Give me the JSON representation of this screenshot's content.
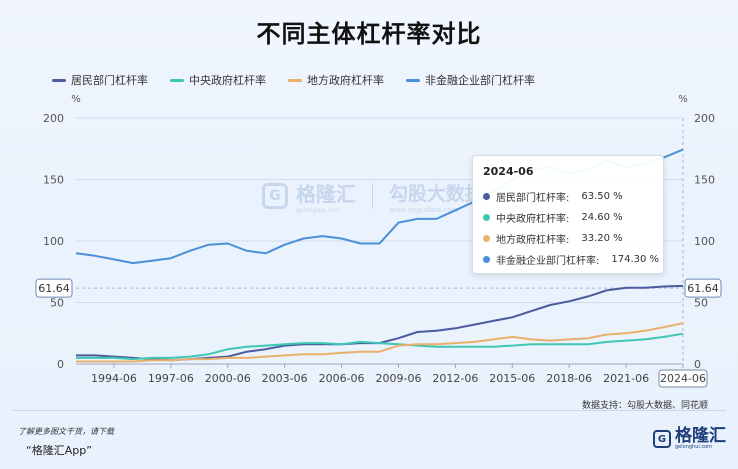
{
  "title": "不同主体杠杆率对比",
  "chart_data": {
    "type": "line",
    "ylabel_left": "%",
    "ylabel_right": "%",
    "ylim": [
      0,
      200
    ],
    "yticks": [
      0,
      50,
      100,
      150,
      200
    ],
    "xlim": [
      "1992-06",
      "2024-06"
    ],
    "xticks": [
      "1994-06",
      "1997-06",
      "2000-06",
      "2003-06",
      "2006-06",
      "2009-06",
      "2012-06",
      "2015-06",
      "2018-06",
      "2021-06",
      "2024-06"
    ],
    "crosshair_value": "61.64",
    "grid": true,
    "legend_position": "top-left",
    "series": [
      {
        "name": "居民部门杠杆率",
        "color": "#4c5a9e",
        "points": [
          [
            "1992-06",
            7
          ],
          [
            "1993-06",
            7
          ],
          [
            "1994-06",
            6
          ],
          [
            "1995-06",
            5
          ],
          [
            "1996-06",
            4
          ],
          [
            "1997-06",
            3
          ],
          [
            "1998-06",
            4
          ],
          [
            "1999-06",
            5
          ],
          [
            "2000-06",
            6
          ],
          [
            "2001-06",
            10
          ],
          [
            "2002-06",
            12
          ],
          [
            "2003-06",
            15
          ],
          [
            "2004-06",
            16
          ],
          [
            "2005-06",
            16
          ],
          [
            "2006-06",
            16
          ],
          [
            "2007-06",
            17
          ],
          [
            "2008-06",
            17
          ],
          [
            "2009-06",
            21
          ],
          [
            "2010-06",
            26
          ],
          [
            "2011-06",
            27
          ],
          [
            "2012-06",
            29
          ],
          [
            "2013-06",
            32
          ],
          [
            "2014-06",
            35
          ],
          [
            "2015-06",
            38
          ],
          [
            "2016-06",
            43
          ],
          [
            "2017-06",
            48
          ],
          [
            "2018-06",
            51
          ],
          [
            "2019-06",
            55
          ],
          [
            "2020-06",
            60
          ],
          [
            "2021-06",
            62
          ],
          [
            "2022-06",
            62
          ],
          [
            "2023-06",
            63
          ],
          [
            "2024-06",
            63.5
          ]
        ]
      },
      {
        "name": "中央政府杠杆率",
        "color": "#3ec7b4",
        "points": [
          [
            "1992-06",
            5
          ],
          [
            "1993-06",
            5
          ],
          [
            "1994-06",
            5
          ],
          [
            "1995-06",
            4
          ],
          [
            "1996-06",
            5
          ],
          [
            "1997-06",
            5
          ],
          [
            "1998-06",
            6
          ],
          [
            "1999-06",
            8
          ],
          [
            "2000-06",
            12
          ],
          [
            "2001-06",
            14
          ],
          [
            "2002-06",
            15
          ],
          [
            "2003-06",
            16
          ],
          [
            "2004-06",
            17
          ],
          [
            "2005-06",
            17
          ],
          [
            "2006-06",
            16
          ],
          [
            "2007-06",
            18
          ],
          [
            "2008-06",
            17
          ],
          [
            "2009-06",
            16
          ],
          [
            "2010-06",
            15
          ],
          [
            "2011-06",
            14
          ],
          [
            "2012-06",
            14
          ],
          [
            "2013-06",
            14
          ],
          [
            "2014-06",
            14
          ],
          [
            "2015-06",
            15
          ],
          [
            "2016-06",
            16
          ],
          [
            "2017-06",
            16
          ],
          [
            "2018-06",
            16
          ],
          [
            "2019-06",
            16
          ],
          [
            "2020-06",
            18
          ],
          [
            "2021-06",
            19
          ],
          [
            "2022-06",
            20
          ],
          [
            "2023-06",
            22
          ],
          [
            "2024-06",
            24.6
          ]
        ]
      },
      {
        "name": "地方政府杠杆率",
        "color": "#e8b06a",
        "points": [
          [
            "1992-06",
            2
          ],
          [
            "1993-06",
            2
          ],
          [
            "1994-06",
            2
          ],
          [
            "1995-06",
            2
          ],
          [
            "1996-06",
            3
          ],
          [
            "1997-06",
            3
          ],
          [
            "1998-06",
            4
          ],
          [
            "1999-06",
            4
          ],
          [
            "2000-06",
            5
          ],
          [
            "2001-06",
            5
          ],
          [
            "2002-06",
            6
          ],
          [
            "2003-06",
            7
          ],
          [
            "2004-06",
            8
          ],
          [
            "2005-06",
            8
          ],
          [
            "2006-06",
            9
          ],
          [
            "2007-06",
            10
          ],
          [
            "2008-06",
            10
          ],
          [
            "2009-06",
            15
          ],
          [
            "2010-06",
            16
          ],
          [
            "2011-06",
            16
          ],
          [
            "2012-06",
            17
          ],
          [
            "2013-06",
            18
          ],
          [
            "2014-06",
            20
          ],
          [
            "2015-06",
            22
          ],
          [
            "2016-06",
            20
          ],
          [
            "2017-06",
            19
          ],
          [
            "2018-06",
            20
          ],
          [
            "2019-06",
            21
          ],
          [
            "2020-06",
            24
          ],
          [
            "2021-06",
            25
          ],
          [
            "2022-06",
            27
          ],
          [
            "2023-06",
            30
          ],
          [
            "2024-06",
            33.2
          ]
        ]
      },
      {
        "name": "非金融企业部门杠杆率",
        "color": "#4a90d9",
        "points": [
          [
            "1992-06",
            90
          ],
          [
            "1993-06",
            88
          ],
          [
            "1994-06",
            85
          ],
          [
            "1995-06",
            82
          ],
          [
            "1996-06",
            84
          ],
          [
            "1997-06",
            86
          ],
          [
            "1998-06",
            92
          ],
          [
            "1999-06",
            97
          ],
          [
            "2000-06",
            98
          ],
          [
            "2001-06",
            92
          ],
          [
            "2002-06",
            90
          ],
          [
            "2003-06",
            97
          ],
          [
            "2004-06",
            102
          ],
          [
            "2005-06",
            104
          ],
          [
            "2006-06",
            102
          ],
          [
            "2007-06",
            98
          ],
          [
            "2008-06",
            98
          ],
          [
            "2009-06",
            115
          ],
          [
            "2010-06",
            118
          ],
          [
            "2011-06",
            118
          ],
          [
            "2012-06",
            125
          ],
          [
            "2013-06",
            132
          ],
          [
            "2014-06",
            140
          ],
          [
            "2015-06",
            150
          ],
          [
            "2016-06",
            158
          ],
          [
            "2017-06",
            160
          ],
          [
            "2018-06",
            155
          ],
          [
            "2019-06",
            158
          ],
          [
            "2020-06",
            165
          ],
          [
            "2021-06",
            160
          ],
          [
            "2022-06",
            163
          ],
          [
            "2023-06",
            168
          ],
          [
            "2024-06",
            174.3
          ]
        ]
      }
    ]
  },
  "tooltip": {
    "date": "2024-06",
    "rows": [
      {
        "label": "居民部门杠杆率:",
        "value": "63.50 %",
        "color": "#4c5a9e"
      },
      {
        "label": "中央政府杠杆率:",
        "value": "24.60 %",
        "color": "#3ec7b4"
      },
      {
        "label": "地方政府杠杆率:",
        "value": "33.20 %",
        "color": "#e8b06a"
      },
      {
        "label": "非金融企业部门杠杆率:",
        "value": "174.30 %",
        "color": "#4a90d9"
      }
    ]
  },
  "watermark": {
    "brand": "格隆汇",
    "brand_sub": "gelonghui.com",
    "site_name": "勾股大数据",
    "site_url": "www.gogudata.com"
  },
  "source_text": "数据支持：勾股大数据、同花顺",
  "footer": {
    "note": "了解更多图文干货，请下载",
    "app": "“格隆汇App”"
  },
  "logo": {
    "mark": "G",
    "text": "格隆汇",
    "sub": "gelonghui.com"
  }
}
